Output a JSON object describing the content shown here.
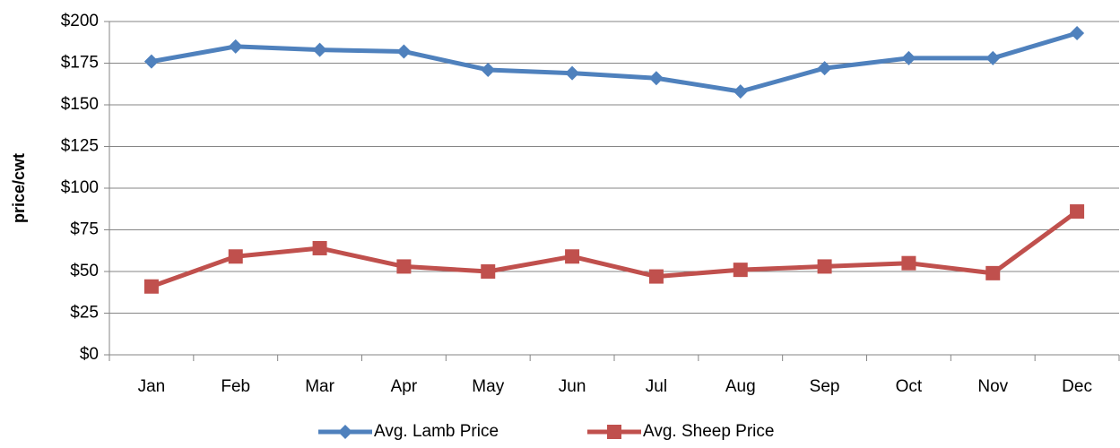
{
  "chart_data": {
    "type": "line",
    "y_label": "price/cwt",
    "categories": [
      "Jan",
      "Feb",
      "Mar",
      "Apr",
      "May",
      "Jun",
      "Jul",
      "Aug",
      "Sep",
      "Oct",
      "Nov",
      "Dec"
    ],
    "series": [
      {
        "name": "Avg. Lamb Price",
        "color": "#4f81bd",
        "marker": "diamond",
        "values": [
          176,
          185,
          183,
          182,
          171,
          169,
          166,
          158,
          172,
          178,
          178,
          193
        ]
      },
      {
        "name": "Avg. Sheep Price",
        "color": "#c0504d",
        "marker": "square",
        "values": [
          41,
          59,
          64,
          53,
          50,
          59,
          47,
          51,
          53,
          55,
          49,
          86
        ]
      }
    ],
    "ylim": [
      0,
      200
    ],
    "yticks": [
      {
        "value": 0,
        "label": "$0"
      },
      {
        "value": 25,
        "label": "$25"
      },
      {
        "value": 50,
        "label": "$50"
      },
      {
        "value": 75,
        "label": "$75"
      },
      {
        "value": 100,
        "label": "$100"
      },
      {
        "value": 125,
        "label": "$125"
      },
      {
        "value": 150,
        "label": "$150"
      },
      {
        "value": 175,
        "label": "$175"
      },
      {
        "value": 200,
        "label": "$200"
      }
    ],
    "grid": true,
    "legend": "bottom"
  }
}
